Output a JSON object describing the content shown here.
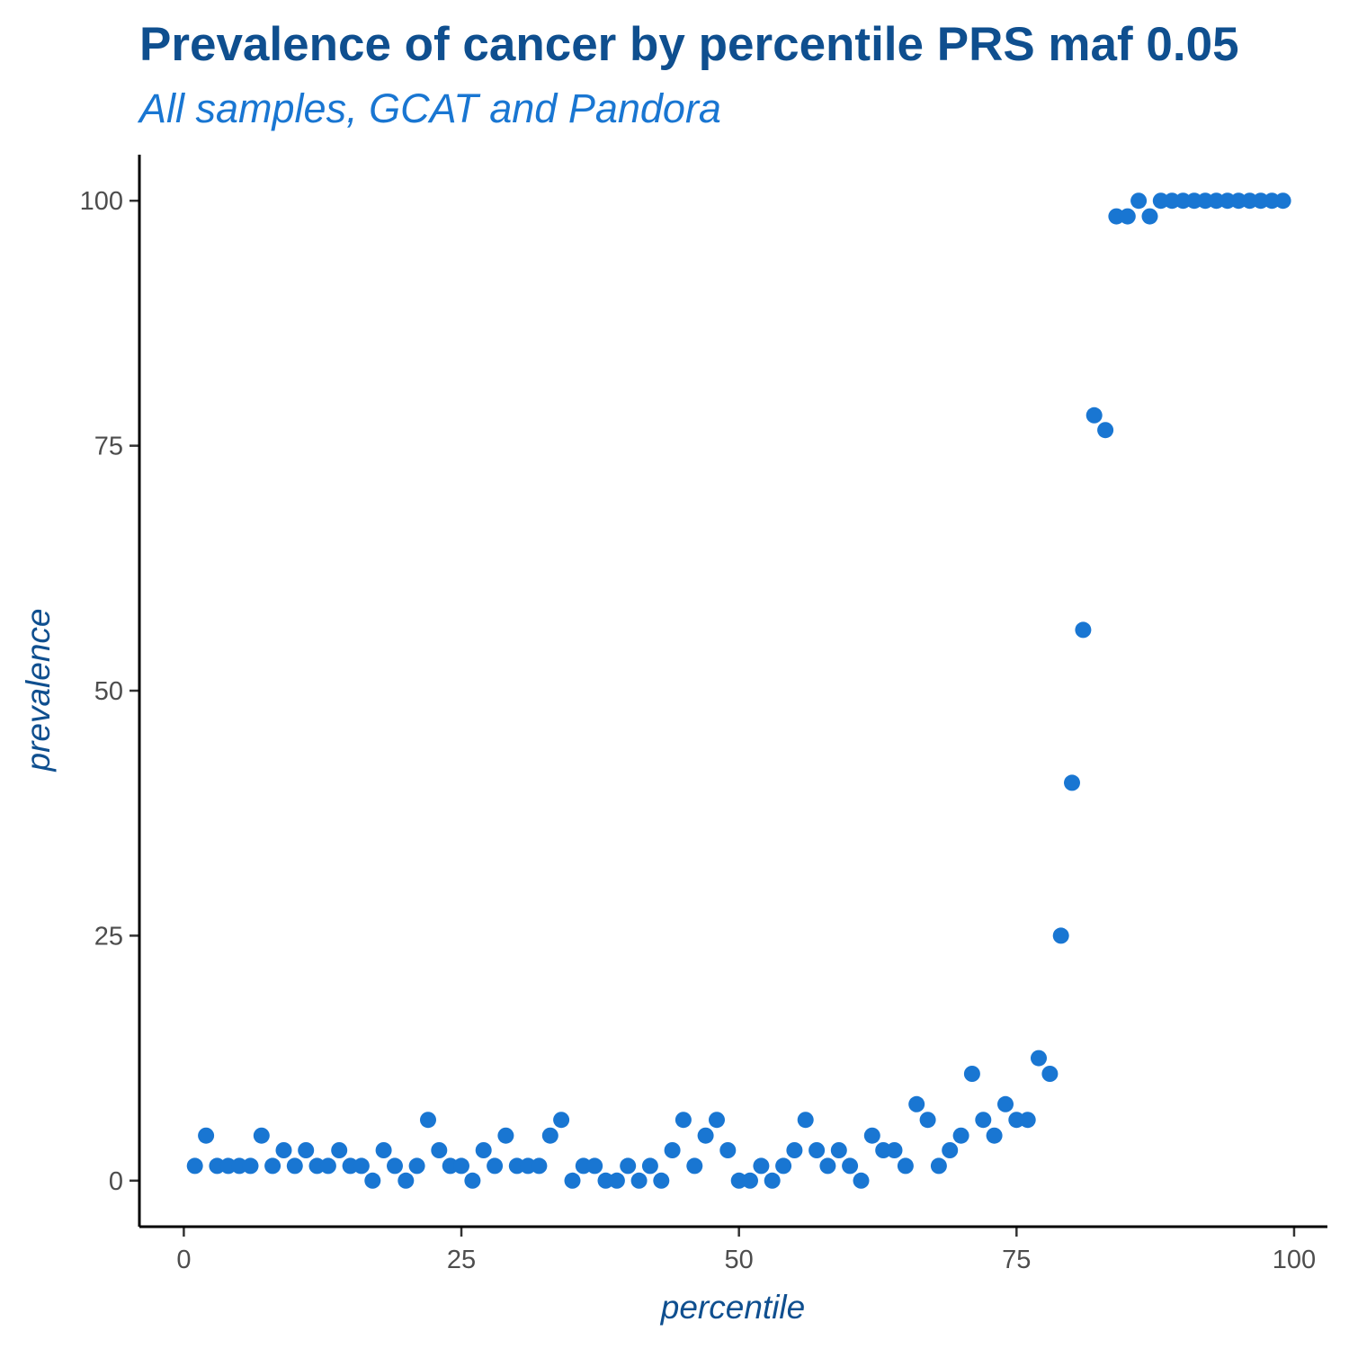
{
  "chart_data": {
    "type": "scatter",
    "title": "Prevalence of cancer by percentile PRS maf 0.05",
    "subtitle": "All samples, GCAT and Pandora",
    "xlabel": "percentile",
    "ylabel": "prevalence",
    "xlim": [
      -4,
      103
    ],
    "ylim": [
      -4.7,
      104.7
    ],
    "x_ticks": [
      0,
      25,
      50,
      75,
      100
    ],
    "y_ticks": [
      0,
      25,
      50,
      75,
      100
    ],
    "grid": false,
    "legend": "none",
    "point_color": "#1976d2",
    "title_color": "#0f4f8f",
    "subtitle_color": "#1976d2",
    "x": [
      1,
      2,
      3,
      4,
      5,
      6,
      7,
      8,
      9,
      10,
      11,
      12,
      13,
      14,
      15,
      16,
      17,
      18,
      19,
      20,
      21,
      22,
      23,
      24,
      25,
      26,
      27,
      28,
      29,
      30,
      31,
      32,
      33,
      34,
      35,
      36,
      37,
      38,
      39,
      40,
      41,
      42,
      43,
      44,
      45,
      46,
      47,
      48,
      49,
      50,
      51,
      52,
      53,
      54,
      55,
      56,
      57,
      58,
      59,
      60,
      61,
      62,
      63,
      64,
      65,
      66,
      67,
      68,
      69,
      70,
      71,
      72,
      73,
      74,
      75,
      76,
      77,
      78,
      79,
      80,
      81,
      82,
      83,
      84,
      85,
      86,
      87,
      88,
      89,
      90,
      91,
      92,
      93,
      94,
      95,
      96,
      97,
      98,
      99
    ],
    "y": [
      1.5,
      4.6,
      1.5,
      1.5,
      1.5,
      1.5,
      4.6,
      1.5,
      3.1,
      1.5,
      3.1,
      1.5,
      1.5,
      3.1,
      1.5,
      1.5,
      0,
      3.1,
      1.5,
      0,
      1.5,
      6.2,
      3.1,
      1.5,
      1.5,
      0,
      3.1,
      1.5,
      4.6,
      1.5,
      1.5,
      1.5,
      4.6,
      6.2,
      0,
      1.5,
      1.5,
      0,
      0,
      1.5,
      0,
      1.5,
      0,
      3.1,
      6.2,
      1.5,
      4.6,
      6.2,
      3.1,
      0,
      0,
      1.5,
      0,
      1.5,
      3.1,
      6.2,
      3.1,
      1.5,
      3.1,
      1.5,
      0,
      4.6,
      3.1,
      3.1,
      1.5,
      7.8,
      6.2,
      1.5,
      3.1,
      4.6,
      10.9,
      6.2,
      4.6,
      7.8,
      6.2,
      6.2,
      12.5,
      10.9,
      25,
      40.6,
      56.2,
      78.1,
      76.6,
      98.4,
      98.4,
      100,
      98.4,
      100,
      100,
      100,
      100,
      100,
      100,
      100,
      100,
      100,
      100,
      100,
      100
    ]
  }
}
